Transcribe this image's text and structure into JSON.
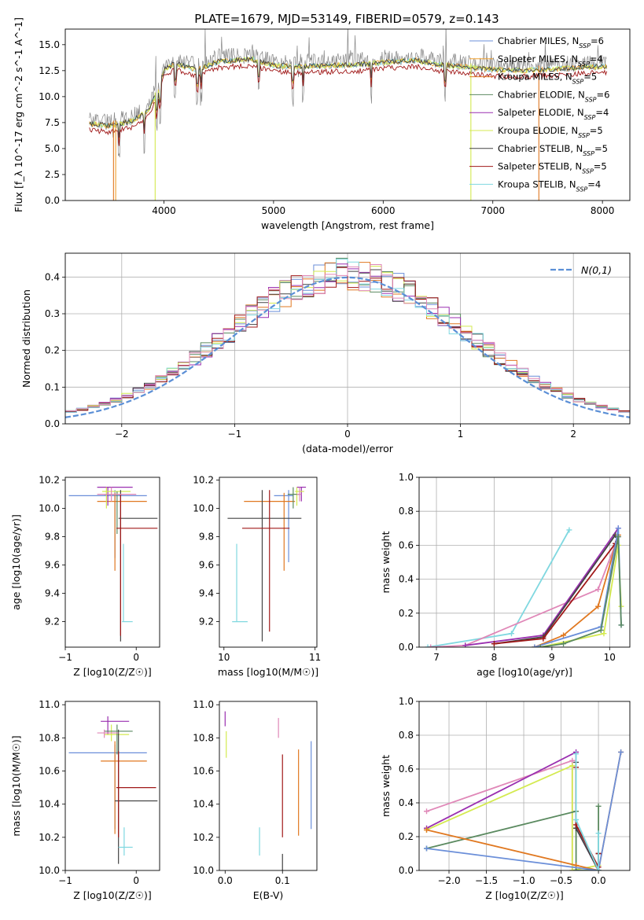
{
  "figure": {
    "title": "PLATE=1679, MJD=53149, FIBERID=0579, z=0.143"
  },
  "colors": {
    "Chabrier MILES": "#6b8fd9",
    "Salpeter MILES": "#f0a030",
    "Kroupa MILES": "#e07820",
    "Chabrier ELODIE": "#5b8a60",
    "Salpeter ELODIE": "#9a2fb0",
    "Kroupa ELODIE": "#d4ea50",
    "Chabrier STELIB": "#444444",
    "Salpeter STELIB": "#a01818",
    "Kroupa STELIB": "#80d8e0",
    "pink": "#e088b8",
    "data": "#888888",
    "gaussian": "#5b8fd6"
  },
  "chart_data": [
    {
      "type": "line",
      "id": "spectrum",
      "title": "PLATE=1679, MJD=53149, FIBERID=0579, z=0.143",
      "xlabel": "wavelength [Angstrom, rest frame]",
      "ylabel": "Flux [f_λ 10^-17 erg cm^-2 s^-1 A^-1]",
      "xlim": [
        3100,
        8250
      ],
      "ylim": [
        0,
        16.5
      ],
      "xticks": [
        4000,
        5000,
        6000,
        7000,
        8000
      ],
      "yticks": [
        0.0,
        2.5,
        5.0,
        7.5,
        10.0,
        12.5,
        15.0
      ],
      "legend_position": "top-right",
      "series": [
        {
          "name": "Chabrier MILES, N_SSP=6"
        },
        {
          "name": "Salpeter MILES, N_SSP=4"
        },
        {
          "name": "Kroupa MILES, N_SSP=5"
        },
        {
          "name": "Chabrier ELODIE, N_SSP=6"
        },
        {
          "name": "Salpeter ELODIE, N_SSP=4"
        },
        {
          "name": "Kroupa ELODIE, N_SSP=5"
        },
        {
          "name": "Chabrier STELIB, N_SSP=5"
        },
        {
          "name": "Salpeter STELIB, N_SSP=5"
        },
        {
          "name": "Kroupa STELIB, N_SSP=4"
        }
      ],
      "continuum": [
        [
          3320,
          7.8
        ],
        [
          3500,
          7.6
        ],
        [
          3700,
          8.0
        ],
        [
          3850,
          9.0
        ],
        [
          3950,
          11.0
        ],
        [
          4000,
          13.0
        ],
        [
          4100,
          13.6
        ],
        [
          4300,
          13.0
        ],
        [
          4500,
          13.8
        ],
        [
          4800,
          14.0
        ],
        [
          5000,
          13.4
        ],
        [
          5200,
          13.3
        ],
        [
          5500,
          13.4
        ],
        [
          5800,
          13.5
        ],
        [
          6000,
          13.7
        ],
        [
          6300,
          13.9
        ],
        [
          6500,
          13.5
        ],
        [
          6800,
          13.2
        ],
        [
          7000,
          13.0
        ],
        [
          7300,
          12.9
        ],
        [
          7600,
          13.1
        ],
        [
          7800,
          13.2
        ],
        [
          8000,
          13.3
        ]
      ]
    },
    {
      "type": "step",
      "id": "residuals",
      "xlabel": "(data-model)/error",
      "ylabel": "Normed distribution",
      "xlim": [
        -2.5,
        2.5
      ],
      "ylim": [
        0,
        0.465
      ],
      "xticks": [
        -2,
        -1,
        0,
        1,
        2
      ],
      "yticks": [
        0.0,
        0.1,
        0.2,
        0.3,
        0.4
      ],
      "legend": "N(0,1)",
      "legend_position": "top-right",
      "bins": 50
    },
    {
      "type": "errorbar",
      "id": "age_vs_Z",
      "xlabel": "Z [log10(Z/Z☉)]",
      "ylabel": "age [log10(age/yr)]",
      "xlim": [
        -1.0,
        0.33
      ],
      "ylim": [
        9.02,
        10.22
      ],
      "xticks": [
        -1,
        0
      ],
      "yticks": [
        9.2,
        9.4,
        9.6,
        9.8,
        10.0,
        10.2
      ],
      "points": [
        {
          "model": "Chabrier MILES",
          "x": -0.3,
          "xlo": -0.95,
          "xhi": 0.15,
          "y": 10.09,
          "ylo": 9.65,
          "yhi": 10.13
        },
        {
          "model": "Kroupa MILES",
          "x": -0.3,
          "xlo": -0.55,
          "xhi": 0.15,
          "y": 10.05,
          "ylo": 9.56,
          "yhi": 10.11
        },
        {
          "model": "Salpeter ELODIE",
          "x": -0.4,
          "xlo": -0.55,
          "xhi": -0.05,
          "y": 10.15,
          "ylo": 10.02,
          "yhi": 10.15
        },
        {
          "model": "Kroupa ELODIE",
          "x": -0.42,
          "xlo": -0.48,
          "xhi": -0.08,
          "y": 10.12,
          "ylo": 10.0,
          "yhi": 10.15
        },
        {
          "model": "Chabrier ELODIE",
          "x": -0.27,
          "xlo": -0.45,
          "xhi": -0.2,
          "y": 10.1,
          "ylo": 9.82,
          "yhi": 10.12
        },
        {
          "model": "Chabrier STELIB",
          "x": -0.22,
          "xlo": -0.25,
          "xhi": 0.3,
          "y": 9.93,
          "ylo": 9.06,
          "yhi": 10.13
        },
        {
          "model": "Salpeter STELIB",
          "x": -0.22,
          "xlo": -0.28,
          "xhi": 0.3,
          "y": 9.86,
          "ylo": 9.1,
          "yhi": 10.1
        },
        {
          "model": "Kroupa STELIB",
          "x": -0.18,
          "xlo": -0.2,
          "xhi": -0.05,
          "y": 9.2,
          "ylo": 9.2,
          "yhi": 9.75
        },
        {
          "model": "pink",
          "x": -0.35,
          "xlo": -0.55,
          "xhi": 0.0,
          "y": 10.1,
          "ylo": 10.05,
          "yhi": 10.15
        }
      ]
    },
    {
      "type": "errorbar",
      "id": "age_vs_mass",
      "xlabel": "mass [log10(M/M☉)]",
      "ylabel": "",
      "xlim": [
        9.95,
        11.02
      ],
      "ylim": [
        9.02,
        10.22
      ],
      "xticks": [
        10,
        11
      ],
      "yticks": [
        9.2,
        9.4,
        9.6,
        9.8,
        10.0,
        10.2
      ],
      "points": [
        {
          "model": "Chabrier MILES",
          "x": 10.71,
          "xlo": 10.55,
          "xhi": 10.76,
          "y": 10.09,
          "ylo": 9.62,
          "yhi": 10.13
        },
        {
          "model": "Kroupa MILES",
          "x": 10.66,
          "xlo": 10.22,
          "xhi": 10.78,
          "y": 10.05,
          "ylo": 9.56,
          "yhi": 10.11
        },
        {
          "model": "Salpeter ELODIE",
          "x": 10.85,
          "xlo": 10.8,
          "xhi": 10.9,
          "y": 10.15,
          "ylo": 10.05,
          "yhi": 10.15
        },
        {
          "model": "Kroupa ELODIE",
          "x": 10.8,
          "xlo": 10.78,
          "xhi": 10.88,
          "y": 10.12,
          "ylo": 10.02,
          "yhi": 10.15
        },
        {
          "model": "Chabrier ELODIE",
          "x": 10.76,
          "xlo": 10.7,
          "xhi": 10.84,
          "y": 10.1,
          "ylo": 10.0,
          "yhi": 10.15
        },
        {
          "model": "Chabrier STELIB",
          "x": 10.42,
          "xlo": 10.04,
          "xhi": 10.85,
          "y": 9.93,
          "ylo": 9.06,
          "yhi": 10.13
        },
        {
          "model": "Salpeter STELIB",
          "x": 10.5,
          "xlo": 10.2,
          "xhi": 10.72,
          "y": 9.86,
          "ylo": 9.13,
          "yhi": 10.13
        },
        {
          "model": "Kroupa STELIB",
          "x": 10.14,
          "xlo": 10.09,
          "xhi": 10.26,
          "y": 9.2,
          "ylo": 9.2,
          "yhi": 9.75
        },
        {
          "model": "pink",
          "x": 10.83,
          "xlo": 10.8,
          "xhi": 10.85,
          "y": 10.1,
          "ylo": 10.05,
          "yhi": 10.15
        }
      ]
    },
    {
      "type": "line",
      "id": "mass_weight_vs_age",
      "xlabel": "age [log10(age/yr)]",
      "ylabel": "mass weight",
      "xlim": [
        6.7,
        10.35
      ],
      "ylim": [
        0,
        1.0
      ],
      "xticks": [
        7,
        8,
        9,
        10
      ],
      "yticks": [
        0.0,
        0.2,
        0.4,
        0.6,
        0.8,
        1.0
      ],
      "grid": true,
      "series": [
        {
          "model": "Kroupa STELIB",
          "x": [
            6.85,
            8.3,
            9.3
          ],
          "y": [
            0.0,
            0.08,
            0.69
          ]
        },
        {
          "model": "pink",
          "x": [
            6.9,
            7.5,
            9.8,
            10.15
          ],
          "y": [
            0.0,
            0.01,
            0.34,
            0.65
          ]
        },
        {
          "model": "Kroupa ELODIE",
          "x": [
            8.8,
            9.9,
            10.15,
            10.2
          ],
          "y": [
            0.0,
            0.08,
            0.6,
            0.24
          ]
        },
        {
          "model": "Salpeter ELODIE",
          "x": [
            7.5,
            8.85,
            10.15
          ],
          "y": [
            0.01,
            0.07,
            0.7
          ]
        },
        {
          "model": "Chabrier STELIB",
          "x": [
            8.0,
            8.85,
            10.1
          ],
          "y": [
            0.02,
            0.06,
            0.66
          ]
        },
        {
          "model": "Salpeter STELIB",
          "x": [
            8.0,
            8.85,
            10.1
          ],
          "y": [
            0.02,
            0.05,
            0.61
          ]
        },
        {
          "model": "Kroupa MILES",
          "x": [
            8.7,
            9.2,
            9.8,
            10.15
          ],
          "y": [
            0.0,
            0.07,
            0.24,
            0.66
          ]
        },
        {
          "model": "Chabrier MILES",
          "x": [
            8.7,
            9.85,
            10.15,
            10.2
          ],
          "y": [
            0.0,
            0.12,
            0.7,
            0.13
          ]
        },
        {
          "model": "Chabrier ELODIE",
          "x": [
            8.8,
            9.2,
            9.85,
            10.15,
            10.2
          ],
          "y": [
            0.0,
            0.02,
            0.1,
            0.65,
            0.13
          ]
        }
      ]
    },
    {
      "type": "errorbar",
      "id": "mass_vs_Z",
      "xlabel": "Z [log10(Z/Z☉)]",
      "ylabel": "mass [log10(M/M☉)]",
      "xlim": [
        -1.0,
        0.33
      ],
      "ylim": [
        10.0,
        11.02
      ],
      "xticks": [
        -1,
        0
      ],
      "yticks": [
        10.0,
        10.2,
        10.4,
        10.6,
        10.8,
        11.0
      ],
      "points": [
        {
          "model": "Chabrier MILES",
          "x": -0.3,
          "xlo": -0.95,
          "xhi": 0.15,
          "y": 10.71,
          "ylo": 10.25,
          "yhi": 10.76
        },
        {
          "model": "Kroupa MILES",
          "x": -0.3,
          "xlo": -0.5,
          "xhi": 0.15,
          "y": 10.66,
          "ylo": 10.22,
          "yhi": 10.78
        },
        {
          "model": "Salpeter ELODIE",
          "x": -0.4,
          "xlo": -0.5,
          "xhi": -0.1,
          "y": 10.9,
          "ylo": 10.82,
          "yhi": 10.93
        },
        {
          "model": "Kroupa ELODIE",
          "x": -0.35,
          "xlo": -0.45,
          "xhi": -0.1,
          "y": 10.82,
          "ylo": 10.78,
          "yhi": 10.88
        },
        {
          "model": "Chabrier ELODIE",
          "x": -0.27,
          "xlo": -0.45,
          "xhi": -0.05,
          "y": 10.84,
          "ylo": 10.7,
          "yhi": 10.88
        },
        {
          "model": "Chabrier STELIB",
          "x": -0.25,
          "xlo": -0.3,
          "xhi": 0.3,
          "y": 10.42,
          "ylo": 10.04,
          "yhi": 10.85
        },
        {
          "model": "Salpeter STELIB",
          "x": -0.25,
          "xlo": -0.28,
          "xhi": 0.28,
          "y": 10.5,
          "ylo": 10.2,
          "yhi": 10.72
        },
        {
          "model": "Kroupa STELIB",
          "x": -0.17,
          "xlo": -0.25,
          "xhi": -0.05,
          "y": 10.14,
          "ylo": 10.09,
          "yhi": 10.26
        },
        {
          "model": "pink",
          "x": -0.45,
          "xlo": -0.55,
          "xhi": -0.25,
          "y": 10.83,
          "ylo": 10.8,
          "yhi": 10.85
        }
      ]
    },
    {
      "type": "errorbar",
      "id": "mass_vs_EBV",
      "xlabel": "E(B-V)",
      "ylabel": "",
      "xlim": [
        -0.01,
        0.16
      ],
      "ylim": [
        10.0,
        11.02
      ],
      "xticks": [
        0.0,
        0.1
      ],
      "yticks": [
        10.0,
        10.2,
        10.4,
        10.6,
        10.8,
        11.0
      ],
      "points": [
        {
          "model": "Chabrier MILES",
          "x": 0.15,
          "ylo": 10.25,
          "yhi": 10.78
        },
        {
          "model": "Kroupa MILES",
          "x": 0.128,
          "ylo": 10.21,
          "yhi": 10.73
        },
        {
          "model": "Salpeter ELODIE",
          "x": 0.0,
          "ylo": 10.87,
          "yhi": 10.96
        },
        {
          "model": "Kroupa ELODIE",
          "x": 0.002,
          "ylo": 10.68,
          "yhi": 10.84
        },
        {
          "model": "Salpeter STELIB",
          "x": 0.1,
          "ylo": 10.2,
          "yhi": 10.7
        },
        {
          "model": "Kroupa STELIB",
          "x": 0.06,
          "ylo": 10.09,
          "yhi": 10.26
        },
        {
          "model": "pink",
          "x": 0.093,
          "ylo": 10.8,
          "yhi": 10.92
        },
        {
          "model": "Chabrier STELIB",
          "x": 0.1,
          "ylo": 10.0,
          "yhi": 10.1
        }
      ]
    },
    {
      "type": "line",
      "id": "mass_weight_vs_Z",
      "xlabel": "Z [log10(Z/Z☉)]",
      "ylabel": "mass weight",
      "xlim": [
        -2.4,
        0.42
      ],
      "ylim": [
        0,
        1.0
      ],
      "xticks": [
        -2.0,
        -1.5,
        -1.0,
        -0.5,
        0.0
      ],
      "yticks": [
        0.0,
        0.2,
        0.4,
        0.6,
        0.8,
        1.0
      ],
      "grid": true,
      "series": [
        {
          "model": "pink",
          "x": [
            -2.3,
            -0.35,
            -0.35
          ],
          "y": [
            0.35,
            0.65,
            0.0
          ]
        },
        {
          "model": "Salpeter ELODIE",
          "x": [
            -2.3,
            -0.3,
            -0.3,
            0.0
          ],
          "y": [
            0.25,
            0.7,
            0.25,
            0.0
          ]
        },
        {
          "model": "Kroupa ELODIE",
          "x": [
            -2.3,
            -0.35,
            -0.35,
            0.0
          ],
          "y": [
            0.24,
            0.62,
            0.0,
            0.03
          ]
        },
        {
          "model": "Chabrier ELODIE",
          "x": [
            -2.3,
            -0.3,
            -0.3,
            0.0,
            0.0
          ],
          "y": [
            0.13,
            0.35,
            0.0,
            0.0,
            0.38
          ]
        },
        {
          "model": "Kroupa MILES",
          "x": [
            -2.3,
            -0.3,
            0.0,
            0.3
          ],
          "y": [
            0.24,
            0.03,
            0.0,
            0.7
          ]
        },
        {
          "model": "Chabrier MILES",
          "x": [
            -2.3,
            0.0,
            0.3
          ],
          "y": [
            0.13,
            0.0,
            0.7
          ]
        },
        {
          "model": "Chabrier STELIB",
          "x": [
            -0.3,
            -0.3,
            0.0,
            0.0
          ],
          "y": [
            0.64,
            0.25,
            0.0,
            0.1
          ]
        },
        {
          "model": "Salpeter STELIB",
          "x": [
            -0.3,
            -0.3,
            0.0,
            0.0
          ],
          "y": [
            0.61,
            0.27,
            0.02,
            0.1
          ]
        },
        {
          "model": "Kroupa STELIB",
          "x": [
            -0.3,
            -0.3,
            0.0,
            0.0
          ],
          "y": [
            0.69,
            0.3,
            0.0,
            0.22
          ]
        }
      ]
    }
  ]
}
